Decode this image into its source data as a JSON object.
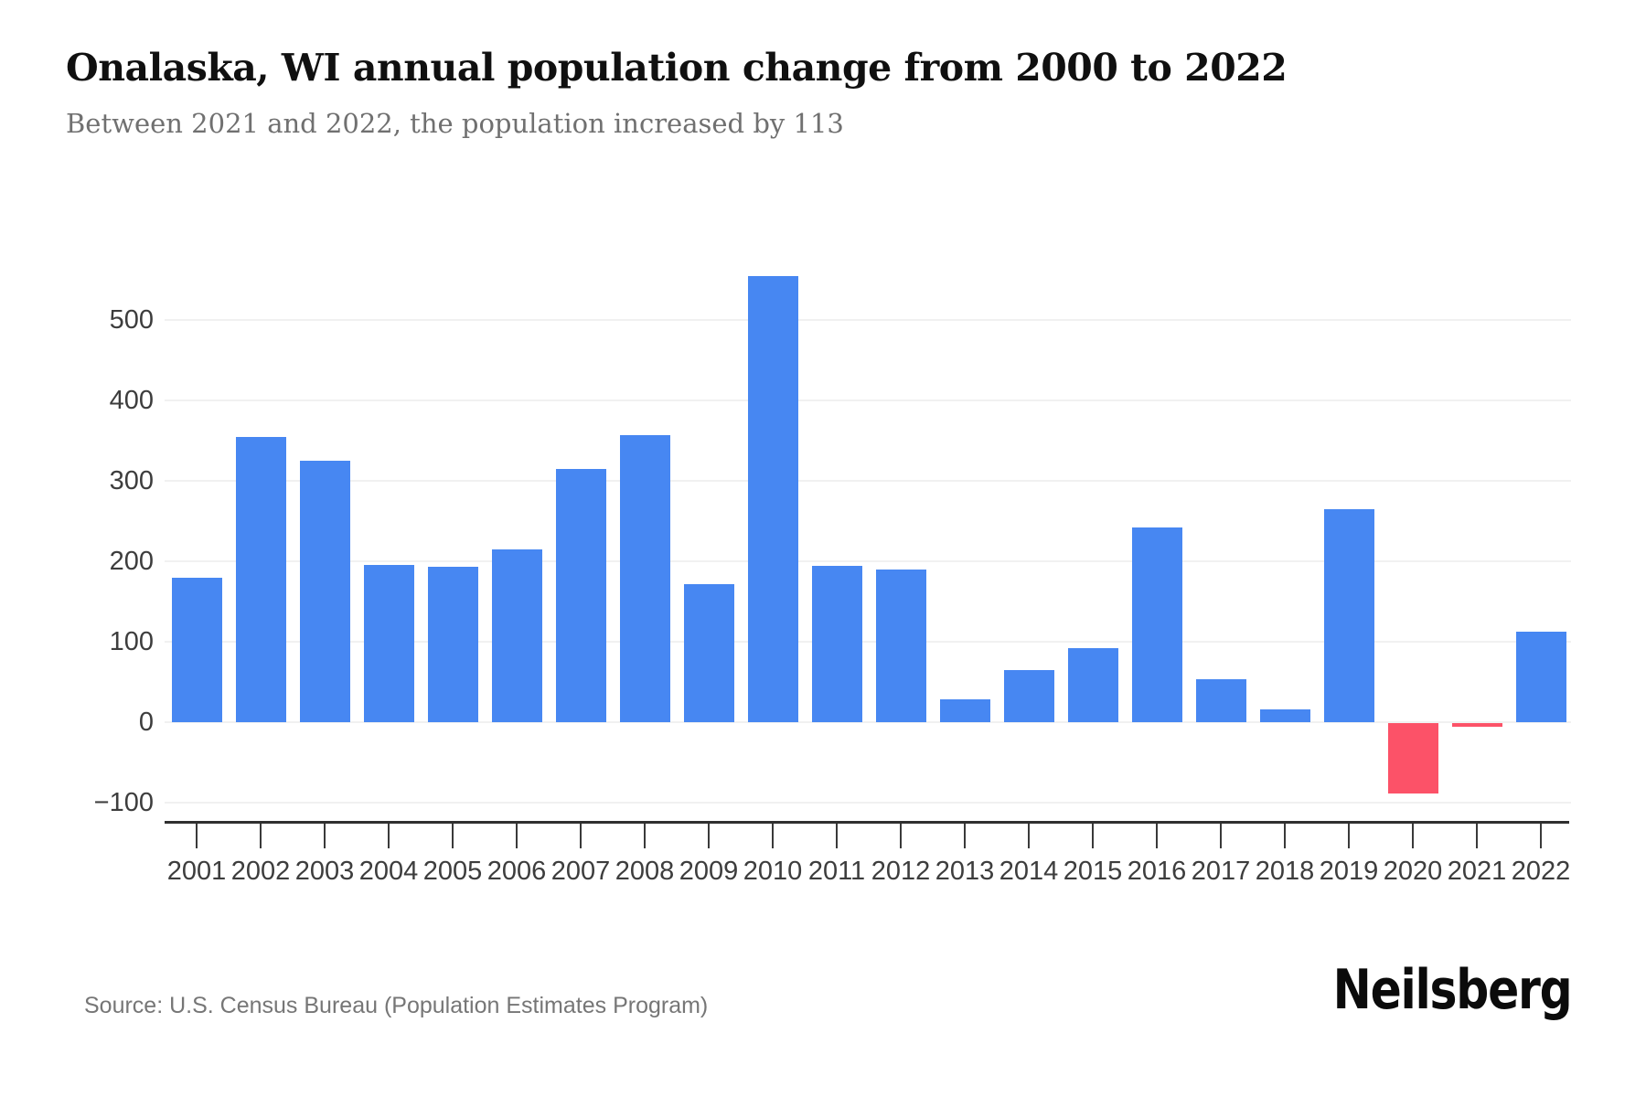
{
  "header": {
    "title": "Onalaska, WI annual population change from 2000 to 2022",
    "subtitle": "Between 2021 and 2022, the population increased by 113"
  },
  "chart_data": {
    "type": "bar",
    "title": "Onalaska, WI annual population change from 2000 to 2022",
    "subtitle": "Between 2021 and 2022, the population increased by 113",
    "xlabel": "",
    "ylabel": "",
    "categories": [
      "2001",
      "2002",
      "2003",
      "2004",
      "2005",
      "2006",
      "2007",
      "2008",
      "2009",
      "2010",
      "2011",
      "2012",
      "2013",
      "2014",
      "2015",
      "2016",
      "2017",
      "2018",
      "2019",
      "2020",
      "2021",
      "2022"
    ],
    "values": [
      180,
      355,
      325,
      195,
      193,
      215,
      315,
      357,
      172,
      555,
      194,
      190,
      28,
      65,
      92,
      242,
      53,
      16,
      265,
      -88,
      -5,
      113
    ],
    "yticks": [
      {
        "value": 500,
        "label": "500"
      },
      {
        "value": 400,
        "label": "400"
      },
      {
        "value": 300,
        "label": "300"
      },
      {
        "value": 200,
        "label": "200"
      },
      {
        "value": 100,
        "label": "100"
      },
      {
        "value": 0,
        "label": "0"
      },
      {
        "value": -100,
        "label": "−100"
      }
    ],
    "ylim": [
      -100,
      560
    ],
    "grid": true,
    "legend": "none",
    "colors": {
      "positive_bar": "#4787F2",
      "negative_bar": "#FC5268",
      "gridline": "#f1f1f1",
      "axis_text": "#3d3d3d",
      "title_text": "#101010",
      "subtitle_text": "#707070"
    }
  },
  "footer": {
    "source": "Source: U.S. Census Bureau (Population Estimates Program)",
    "brand": "Neilsberg"
  }
}
